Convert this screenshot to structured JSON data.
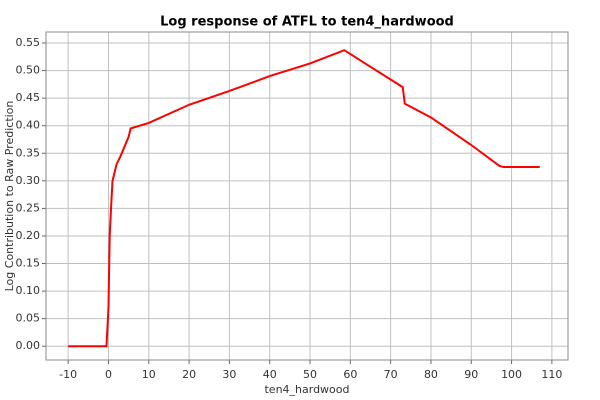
{
  "chart_data": {
    "type": "line",
    "title": "Log response of ATFL to ten4_hardwood",
    "x_label": "ten4_hardwood",
    "y_label": "Log Contribution to Raw Prediction",
    "x": [
      -10,
      -0.5,
      0,
      0.3,
      0.7,
      1,
      2,
      3,
      5,
      5.5,
      10,
      20,
      30,
      40,
      50,
      58.5,
      73,
      73.5,
      80,
      90,
      97,
      98,
      107
    ],
    "series": [
      {
        "name": "response",
        "color": "#ff0000",
        "values": [
          0,
          0,
          0.07,
          0.2,
          0.26,
          0.3,
          0.33,
          0.345,
          0.38,
          0.395,
          0.405,
          0.438,
          0.463,
          0.49,
          0.513,
          0.537,
          0.47,
          0.44,
          0.415,
          0.365,
          0.327,
          0.325,
          0.325
        ]
      }
    ],
    "xlim": [
      -15.5,
      114
    ],
    "ylim": [
      -0.025,
      0.57
    ],
    "xticks": [
      -10,
      0,
      10,
      20,
      30,
      40,
      50,
      60,
      70,
      80,
      90,
      100,
      110
    ],
    "yticks": [
      {
        "value": 0,
        "label": "0.00"
      },
      {
        "value": 0.05,
        "label": "0.05"
      },
      {
        "value": 0.1,
        "label": "0.10"
      },
      {
        "value": 0.15,
        "label": "0.15"
      },
      {
        "value": 0.2,
        "label": "0.20"
      },
      {
        "value": 0.25,
        "label": "0.25"
      },
      {
        "value": 0.3,
        "label": "0.30"
      },
      {
        "value": 0.35,
        "label": "0.35"
      },
      {
        "value": 0.4,
        "label": "0.40"
      },
      {
        "value": 0.45,
        "label": "0.45"
      },
      {
        "value": 0.5,
        "label": "0.50"
      },
      {
        "value": 0.55,
        "label": "0.55"
      }
    ],
    "grid": true
  }
}
